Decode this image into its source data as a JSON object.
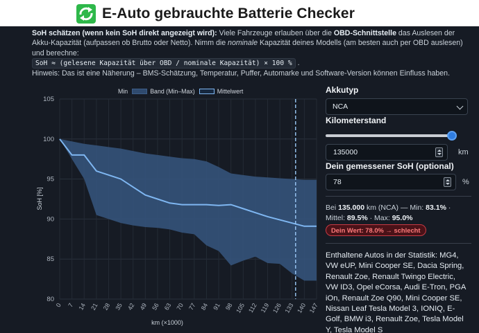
{
  "app": {
    "title": "E-Auto gebrauchte Batterie Checker",
    "logo_icon": "recycle-arrows-icon",
    "accent_color": "#2eb84a"
  },
  "info": {
    "heading": "SoH schätzen (wenn kein SoH direkt angezeigt wird):",
    "text1": " Viele Fahrzeuge erlauben über die ",
    "bold_obd": "OBD-Schnittstelle",
    "text2": " das Auslesen der Akku-Kapazität (aufpassen ob Brutto oder Netto). Nimm die ",
    "italic_nominal": "nominale",
    "text3": " Kapazität deines Modells (am besten auch per OBD auslesen) und berechne:",
    "formula": "SoH ≈ (gelesene Kapazität über OBD / nominale Kapazität) × 100 %",
    "formula_end": ".",
    "hint": "Hinweis: Das ist eine Näherung – BMS-Schätzung, Temperatur, Puffer, Automarke und Software-Version können Einfluss haben."
  },
  "chart_data": {
    "type": "line",
    "legend": [
      "Min",
      "Band (Min–Max)",
      "Mittelwert"
    ],
    "legend_position": "top",
    "xlabel": "km (×1000)",
    "ylabel": "SoH [%]",
    "x": [
      0,
      7,
      14,
      21,
      28,
      35,
      42,
      49,
      56,
      63,
      70,
      77,
      84,
      91,
      98,
      105,
      112,
      119,
      126,
      133,
      140,
      147
    ],
    "ylim": [
      80,
      105
    ],
    "yticks": [
      80,
      85,
      90,
      95,
      100,
      105
    ],
    "series": [
      {
        "name": "Min",
        "values": [
          100,
          97.5,
          95,
          90.5,
          90,
          89.5,
          89.2,
          89,
          88.9,
          88.7,
          88.3,
          88.1,
          86.7,
          86,
          84.2,
          84.8,
          85.3,
          84.5,
          84.4,
          83.2,
          82.3,
          82.3
        ]
      },
      {
        "name": "Max",
        "values": [
          100,
          99.7,
          99.4,
          99.2,
          99,
          98.8,
          98.5,
          98.2,
          98,
          97.8,
          97.6,
          97.5,
          97.2,
          96.5,
          95.7,
          95.5,
          95.3,
          95.2,
          95.1,
          95.0,
          94.9,
          94.9
        ]
      },
      {
        "name": "Mittelwert",
        "values": [
          100,
          98,
          98,
          96,
          95.5,
          95,
          94,
          93,
          92.5,
          92,
          91.8,
          91.8,
          91.8,
          91.7,
          91.8,
          91.3,
          90.8,
          90.3,
          89.9,
          89.5,
          89.1,
          89.1
        ]
      }
    ],
    "marker_line_x": 135,
    "grid": true,
    "colors": {
      "band": "#36567f",
      "mean": "#7fb7f2",
      "marker": "#9ccaf8"
    }
  },
  "form": {
    "akkutyp_label": "Akkutyp",
    "akkutyp_value": "NCA",
    "km_label": "Kilometerstand",
    "km_slider_fraction": 0.98,
    "km_value": "135000",
    "km_unit": "km",
    "soh_label": "Dein gemessener SoH (optional)",
    "soh_value": "78",
    "soh_unit": "%"
  },
  "result": {
    "p1": "Bei ",
    "km": "135.000",
    "p2": " km (NCA) — Min: ",
    "min": "83.1%",
    "p3": " · Mittel: ",
    "mean": "89.5%",
    "p4": " · Max: ",
    "max": "95.0%",
    "badge": "Dein Wert: 78.0% → schlecht",
    "badge_color": "#ff7b7b"
  },
  "cars_text": "Enthaltene Autos in der Statistik: MG4, VW eUP, Mini Cooper SE, Dacia Spring, Renault Zoe, Renault Twingo Electric, VW ID3, Opel eCorsa, Audi E-Tron, PGA iOn, Renault Zoe Q90, Mini Cooper SE, Nissan Leaf Tesla Model 3, IONIQ, E-Golf, BMW i3, Renault Zoe, Tesla Model Y, Tesla Model S"
}
